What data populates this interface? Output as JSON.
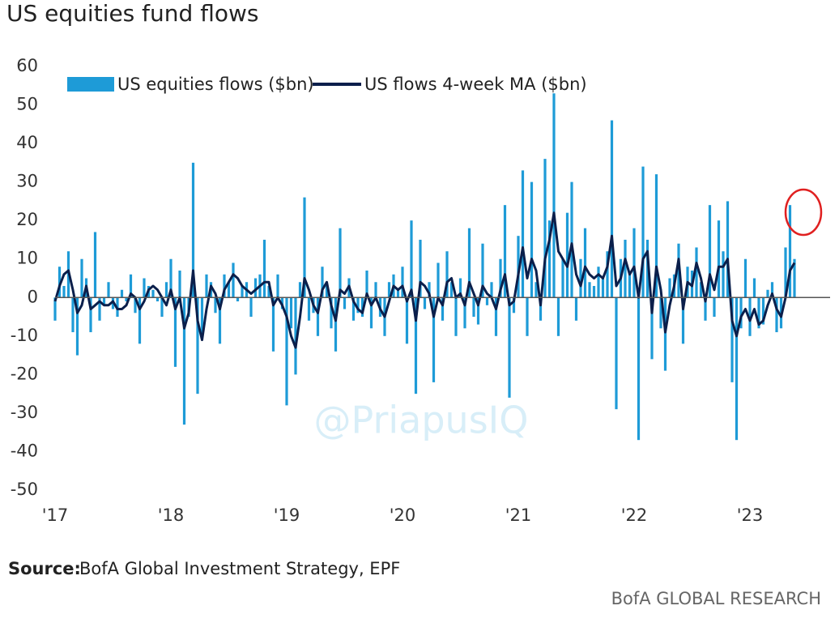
{
  "chart_data": {
    "type": "bar_line",
    "title": "US equities fund flows",
    "source_label": "Source:",
    "source": "BofA Global Investment Strategy, EPF",
    "footer": "BofA GLOBAL RESEARCH",
    "watermark": "@PriapusIQ",
    "categories": [
      "'17",
      null,
      null,
      null,
      null,
      null,
      null,
      null,
      null,
      null,
      null,
      null,
      null,
      null,
      null,
      null,
      null,
      null,
      null,
      null,
      null,
      null,
      null,
      null,
      null,
      null,
      "'18",
      null,
      null,
      null,
      null,
      null,
      null,
      null,
      null,
      null,
      null,
      null,
      null,
      null,
      null,
      null,
      null,
      null,
      null,
      null,
      null,
      null,
      null,
      null,
      null,
      null,
      "'19",
      null,
      null,
      null,
      null,
      null,
      null,
      null,
      null,
      null,
      null,
      null,
      null,
      null,
      null,
      null,
      null,
      null,
      null,
      null,
      null,
      null,
      null,
      null,
      null,
      null,
      "'20",
      null,
      null,
      null,
      null,
      null,
      null,
      null,
      null,
      null,
      null,
      null,
      null,
      null,
      null,
      null,
      null,
      null,
      null,
      null,
      null,
      null,
      null,
      null,
      null,
      null,
      "'21",
      null,
      null,
      null,
      null,
      null,
      null,
      null,
      null,
      null,
      null,
      null,
      null,
      null,
      null,
      null,
      null,
      null,
      null,
      null,
      null,
      null,
      null,
      null,
      null,
      null,
      "'22",
      null,
      null,
      null,
      null,
      null,
      null,
      null,
      null,
      null,
      null,
      null,
      null,
      null,
      null,
      null,
      null,
      null,
      null,
      null,
      null,
      null,
      null,
      null,
      null,
      null,
      "'23",
      null,
      null,
      null,
      null,
      null,
      null,
      null,
      null,
      null,
      null
    ],
    "series": [
      {
        "name": "US equities flows ($bn)",
        "type": "bar",
        "color": "#1e9bd7",
        "values": [
          -6,
          8,
          3,
          12,
          -9,
          -15,
          10,
          5,
          -9,
          17,
          -6,
          -2,
          4,
          -3,
          -5,
          2,
          -1,
          6,
          -4,
          -12,
          5,
          3,
          2,
          -1,
          -5,
          4,
          10,
          -18,
          7,
          -33,
          -5,
          35,
          -25,
          -10,
          6,
          4,
          -4,
          -12,
          6,
          4,
          9,
          -1,
          3,
          4,
          -5,
          5,
          6,
          15,
          3,
          -14,
          6,
          -3,
          -28,
          -8,
          -20,
          4,
          26,
          -6,
          -4,
          -10,
          8,
          3,
          -8,
          -14,
          18,
          -3,
          5,
          -6,
          -4,
          -5,
          7,
          -8,
          4,
          -5,
          -10,
          4,
          6,
          2,
          8,
          -12,
          20,
          -25,
          15,
          -3,
          4,
          -22,
          9,
          -6,
          12,
          4,
          -10,
          5,
          -8,
          18,
          -5,
          -7,
          14,
          -2,
          4,
          -10,
          10,
          24,
          -26,
          -4,
          16,
          33,
          -10,
          30,
          4,
          -6,
          36,
          20,
          53,
          -10,
          10,
          22,
          30,
          -6,
          10,
          18,
          4,
          3,
          8,
          5,
          12,
          46,
          -29,
          10,
          15,
          6,
          18,
          -37,
          34,
          15,
          -16,
          32,
          -8,
          -19,
          5,
          6,
          14,
          -12,
          8,
          7,
          13,
          4,
          -6,
          24,
          -5,
          20,
          12,
          25,
          -22,
          -37,
          -8,
          10,
          -10,
          5,
          -8,
          -7,
          2,
          4,
          -9,
          -8,
          13,
          24,
          10
        ]
      },
      {
        "name": "US flows 4-week MA ($bn)",
        "type": "line",
        "color": "#0b1f4b",
        "values": [
          -1,
          3,
          6,
          7,
          2,
          -4,
          -2,
          3,
          -3,
          -2,
          -1,
          -2,
          -2,
          -1,
          -3,
          -3,
          -2,
          1,
          0,
          -3,
          -1,
          2,
          3,
          2,
          0,
          -2,
          2,
          -3,
          0,
          -8,
          -4,
          7,
          -6,
          -11,
          -3,
          3,
          1,
          -3,
          2,
          4,
          6,
          5,
          3,
          2,
          1,
          2,
          3,
          4,
          4,
          -2,
          0,
          -2,
          -5,
          -10,
          -13,
          -5,
          5,
          2,
          -2,
          -4,
          2,
          4,
          -2,
          -6,
          2,
          1,
          3,
          -1,
          -3,
          -4,
          1,
          -2,
          0,
          -3,
          -5,
          -1,
          3,
          2,
          3,
          -1,
          2,
          -6,
          4,
          3,
          1,
          -5,
          0,
          -2,
          4,
          5,
          0,
          1,
          -2,
          4,
          1,
          -2,
          3,
          1,
          0,
          -3,
          2,
          6,
          -2,
          -1,
          6,
          13,
          5,
          10,
          7,
          -2,
          10,
          15,
          22,
          12,
          10,
          8,
          14,
          6,
          3,
          8,
          6,
          5,
          6,
          5,
          8,
          16,
          3,
          5,
          10,
          6,
          8,
          0,
          10,
          12,
          -4,
          8,
          2,
          -9,
          -2,
          3,
          10,
          -3,
          4,
          3,
          9,
          5,
          -1,
          6,
          2,
          8,
          8,
          10,
          -6,
          -10,
          -5,
          -3,
          -6,
          -3,
          -7,
          -6,
          -2,
          1,
          -3,
          -5,
          0,
          7,
          9
        ]
      }
    ],
    "ylim": [
      -50,
      60
    ],
    "yticks": [
      60,
      50,
      40,
      30,
      20,
      10,
      0,
      -10,
      -20,
      -30,
      -40,
      -50
    ],
    "grid": false
  }
}
